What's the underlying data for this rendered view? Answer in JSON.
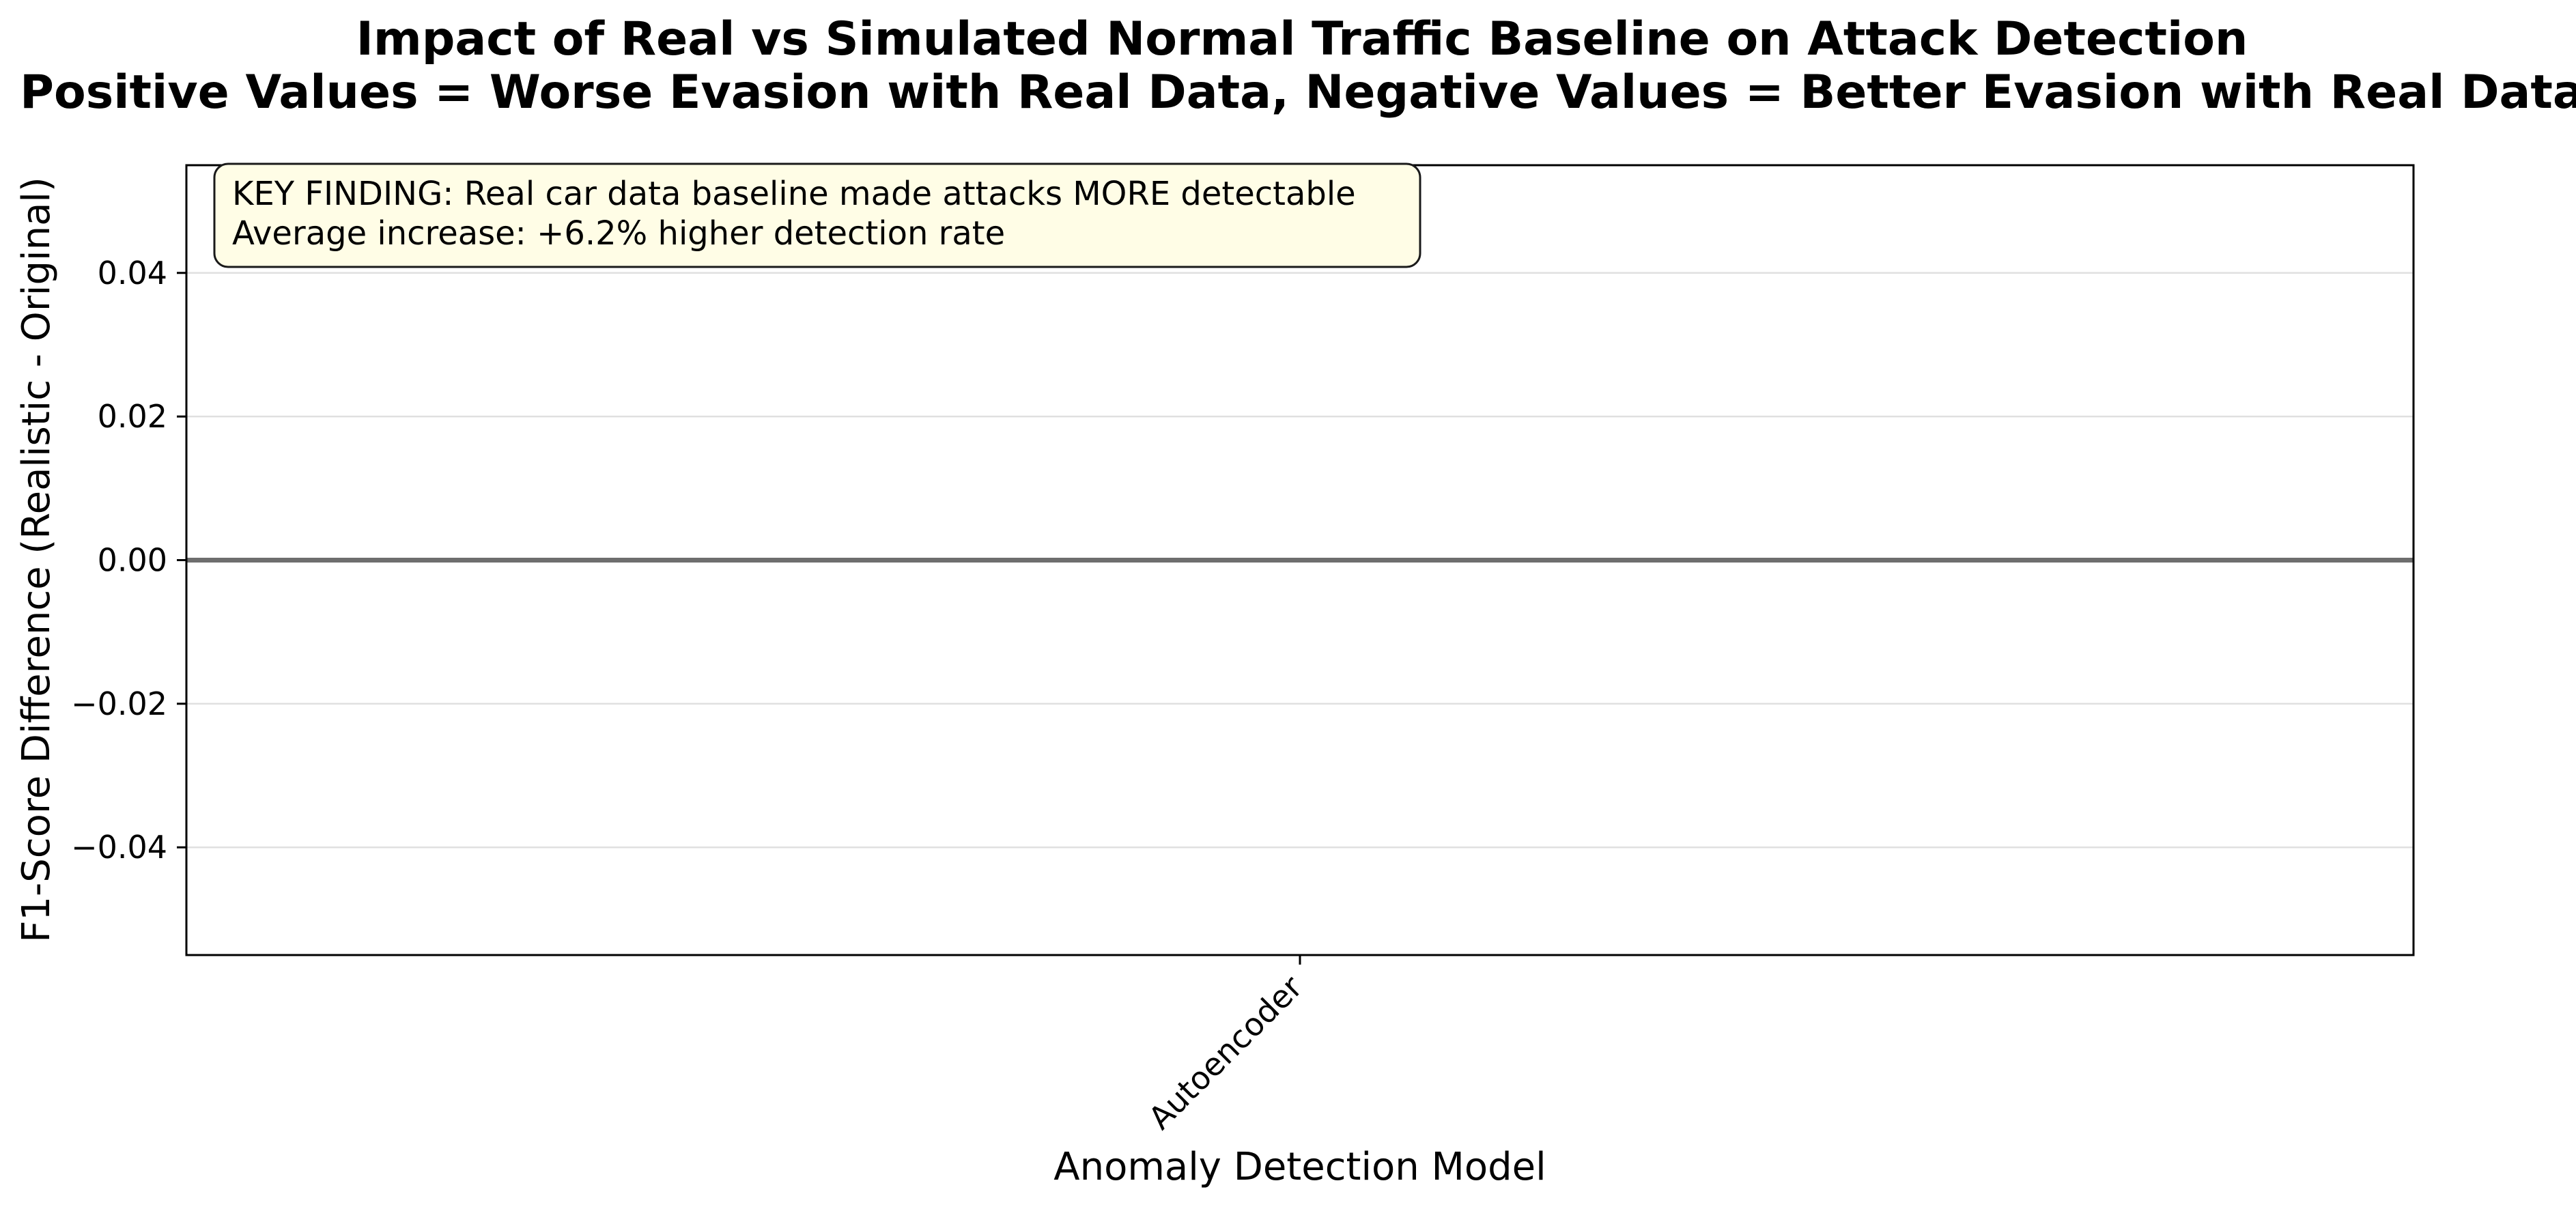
{
  "chart_data": {
    "type": "bar",
    "title": "Impact of Real vs Simulated Normal Traffic Baseline on Attack Detection",
    "subtitle": "Positive Values = Worse Evasion with Real Data, Negative Values = Better Evasion with Real Data",
    "xlabel": "Anomaly Detection Model",
    "ylabel": "F1-Score Difference (Realistic - Original)",
    "categories": [
      "Autoencoder"
    ],
    "values": [
      0.0
    ],
    "ylim": [
      -0.055,
      0.055
    ],
    "yticks": [
      0.04,
      0.02,
      0.0,
      -0.02,
      -0.04
    ],
    "ytick_labels": [
      "0.04",
      "0.02",
      "0.00",
      "−0.02",
      "−0.04"
    ],
    "grid": "y",
    "reference_line": 0.0,
    "annotation": {
      "line1": "KEY FINDING: Real car data baseline made attacks MORE detectable",
      "line2": "Average increase: +6.2% higher detection rate",
      "placement": "top-left"
    },
    "colors": {
      "annotation_bg": "#fffde6",
      "grid": "#e0e0e0",
      "zero_line": "#6e6e6e",
      "axes": "#000000"
    }
  }
}
